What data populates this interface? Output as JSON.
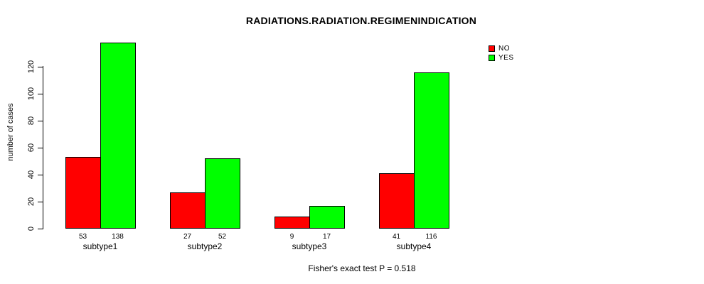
{
  "title": "RADIATIONS.RADIATION.REGIMENINDICATION",
  "footer": "Fisher's exact test P = 0.518",
  "colors": {
    "no": "#ff0000",
    "yes": "#00ff00",
    "axis": "#000000"
  },
  "chart_data": {
    "type": "bar",
    "title": "RADIATIONS.RADIATION.REGIMENINDICATION",
    "xlabel": "",
    "ylabel": "number of cases",
    "categories": [
      "subtype1",
      "subtype2",
      "subtype3",
      "subtype4"
    ],
    "series": [
      {
        "name": "NO",
        "color": "#ff0000",
        "values": [
          53,
          27,
          9,
          41
        ]
      },
      {
        "name": "YES",
        "color": "#00ff00",
        "values": [
          138,
          52,
          17,
          116
        ]
      }
    ],
    "value_labels": {
      "NO": [
        53,
        27,
        9,
        41
      ],
      "YES": [
        138,
        52,
        17,
        116
      ]
    },
    "yticks": [
      0,
      20,
      40,
      60,
      80,
      100,
      120
    ],
    "ylim": [
      0,
      145
    ],
    "grid": false,
    "legend_position": "top-right",
    "annotation": "Fisher's exact test P = 0.518"
  }
}
